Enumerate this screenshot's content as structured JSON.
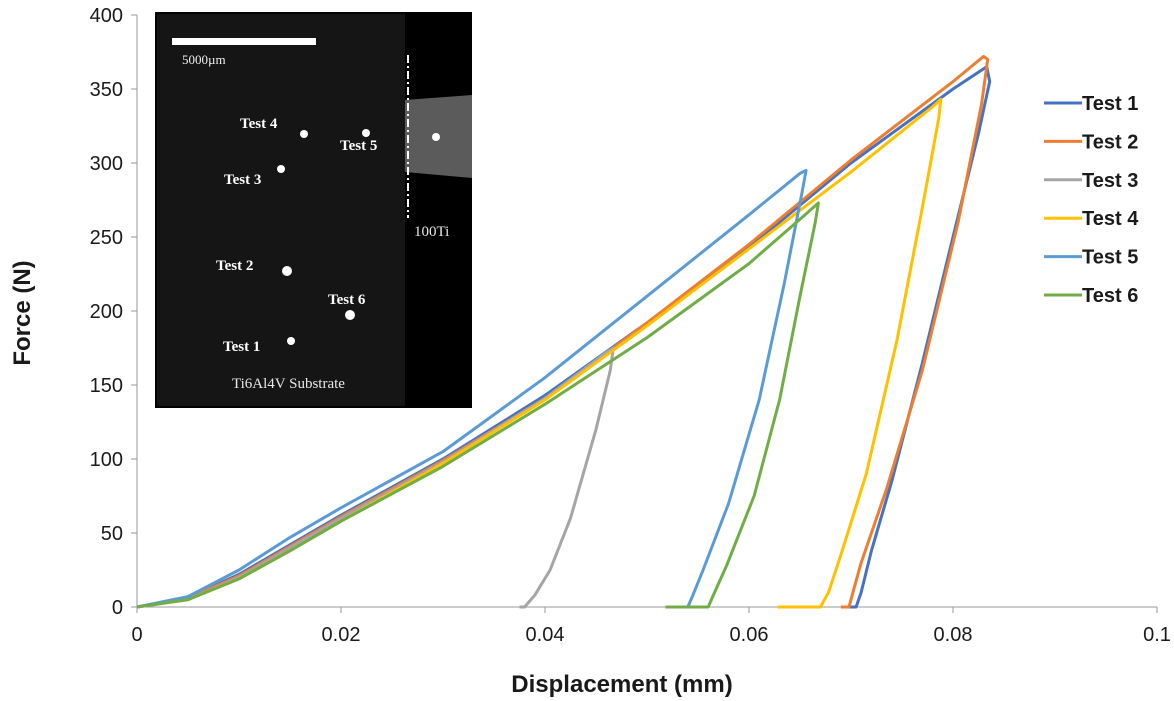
{
  "chart_data": {
    "type": "line",
    "title": "",
    "xlabel": "Displacement (mm)",
    "ylabel": "Force (N)",
    "xlim": [
      0,
      0.1
    ],
    "ylim": [
      0,
      400
    ],
    "xticks": [
      "0",
      "0.02",
      "0.04",
      "0.06",
      "0.08",
      "0.1"
    ],
    "yticks": [
      "0",
      "50",
      "100",
      "150",
      "200",
      "250",
      "300",
      "350",
      "400"
    ],
    "grid": false,
    "legend_position": "right",
    "series": [
      {
        "name": "Test 1",
        "color": "#4472C4",
        "points": [
          [
            0,
            0
          ],
          [
            0.005,
            6
          ],
          [
            0.01,
            22
          ],
          [
            0.015,
            42
          ],
          [
            0.02,
            62
          ],
          [
            0.03,
            100
          ],
          [
            0.04,
            143
          ],
          [
            0.05,
            192
          ],
          [
            0.06,
            243
          ],
          [
            0.07,
            300
          ],
          [
            0.08,
            350
          ],
          [
            0.0833,
            365
          ],
          [
            0.0836,
            355
          ],
          [
            0.0825,
            320
          ],
          [
            0.08,
            250
          ],
          [
            0.077,
            165
          ],
          [
            0.074,
            85
          ],
          [
            0.072,
            38
          ],
          [
            0.071,
            10
          ],
          [
            0.0705,
            0
          ],
          [
            0.0695,
            0
          ]
        ]
      },
      {
        "name": "Test 2",
        "color": "#ED7D31",
        "points": [
          [
            0,
            0
          ],
          [
            0.005,
            6
          ],
          [
            0.01,
            21
          ],
          [
            0.015,
            41
          ],
          [
            0.02,
            61
          ],
          [
            0.03,
            99
          ],
          [
            0.04,
            141
          ],
          [
            0.05,
            192
          ],
          [
            0.06,
            245
          ],
          [
            0.07,
            302
          ],
          [
            0.08,
            355
          ],
          [
            0.083,
            372
          ],
          [
            0.0834,
            370
          ],
          [
            0.0828,
            340
          ],
          [
            0.0805,
            260
          ],
          [
            0.077,
            160
          ],
          [
            0.0735,
            80
          ],
          [
            0.071,
            30
          ],
          [
            0.0702,
            10
          ],
          [
            0.0698,
            0
          ],
          [
            0.069,
            0
          ]
        ]
      },
      {
        "name": "Test 3",
        "color": "#A5A5A5",
        "points": [
          [
            0,
            0
          ],
          [
            0.005,
            5
          ],
          [
            0.01,
            20
          ],
          [
            0.015,
            40
          ],
          [
            0.02,
            60
          ],
          [
            0.03,
            98
          ],
          [
            0.04,
            141
          ],
          [
            0.046,
            172
          ],
          [
            0.0467,
            175
          ],
          [
            0.0464,
            160
          ],
          [
            0.045,
            120
          ],
          [
            0.0425,
            60
          ],
          [
            0.0405,
            25
          ],
          [
            0.039,
            8
          ],
          [
            0.038,
            0
          ],
          [
            0.0375,
            0
          ]
        ]
      },
      {
        "name": "Test 4",
        "color": "#FFC000",
        "points": [
          [
            0,
            0
          ],
          [
            0.005,
            5
          ],
          [
            0.01,
            19
          ],
          [
            0.015,
            38
          ],
          [
            0.02,
            58
          ],
          [
            0.03,
            97
          ],
          [
            0.04,
            140
          ],
          [
            0.05,
            190
          ],
          [
            0.06,
            242
          ],
          [
            0.07,
            294
          ],
          [
            0.078,
            338
          ],
          [
            0.0788,
            343
          ],
          [
            0.0786,
            330
          ],
          [
            0.077,
            270
          ],
          [
            0.0745,
            180
          ],
          [
            0.0715,
            90
          ],
          [
            0.069,
            35
          ],
          [
            0.0678,
            10
          ],
          [
            0.067,
            0
          ],
          [
            0.0628,
            0
          ]
        ]
      },
      {
        "name": "Test 5",
        "color": "#5B9BD5",
        "points": [
          [
            0,
            0
          ],
          [
            0.005,
            7
          ],
          [
            0.01,
            25
          ],
          [
            0.015,
            47
          ],
          [
            0.02,
            67
          ],
          [
            0.03,
            105
          ],
          [
            0.04,
            155
          ],
          [
            0.05,
            210
          ],
          [
            0.06,
            265
          ],
          [
            0.065,
            293
          ],
          [
            0.0656,
            295
          ],
          [
            0.0652,
            280
          ],
          [
            0.0635,
            220
          ],
          [
            0.061,
            140
          ],
          [
            0.058,
            70
          ],
          [
            0.0555,
            25
          ],
          [
            0.0545,
            8
          ],
          [
            0.054,
            0
          ],
          [
            0.0534,
            0
          ]
        ]
      },
      {
        "name": "Test 6",
        "color": "#70AD47",
        "points": [
          [
            0,
            0
          ],
          [
            0.005,
            5
          ],
          [
            0.01,
            19
          ],
          [
            0.015,
            38
          ],
          [
            0.02,
            58
          ],
          [
            0.03,
            95
          ],
          [
            0.04,
            137
          ],
          [
            0.05,
            182
          ],
          [
            0.06,
            232
          ],
          [
            0.065,
            262
          ],
          [
            0.0668,
            273
          ],
          [
            0.0665,
            260
          ],
          [
            0.065,
            210
          ],
          [
            0.063,
            140
          ],
          [
            0.0605,
            75
          ],
          [
            0.0578,
            28
          ],
          [
            0.0565,
            8
          ],
          [
            0.056,
            0
          ],
          [
            0.0518,
            0
          ]
        ]
      }
    ]
  },
  "inset": {
    "scale_bar_label": "5000µm",
    "material_label": "100Ti",
    "substrate_label": "Ti6Al4V Substrate",
    "markers": [
      {
        "label": "Test 4"
      },
      {
        "label": "Test 5"
      },
      {
        "label": "Test 3"
      },
      {
        "label": "Test 2"
      },
      {
        "label": "Test 6"
      },
      {
        "label": "Test 1"
      }
    ]
  }
}
